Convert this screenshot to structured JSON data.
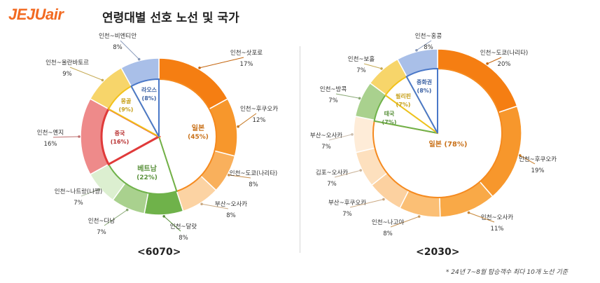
{
  "header": {
    "logo": "JEJUair",
    "title": "연령대별 선호 노선 및 국가"
  },
  "footnote": "* 24년 7~8월 탑승객수 최다 10개 노선 기준",
  "chart_data": [
    {
      "type": "pie",
      "period": "<6070>",
      "countries": [
        {
          "name": "일본",
          "value": 45,
          "label": "(45%)",
          "color": "#f58a1f"
        },
        {
          "name": "베트남",
          "value": 22,
          "label": "(22%)",
          "color": "#6fb24a"
        },
        {
          "name": "중국",
          "value": 16,
          "label": "(16%)",
          "color": "#e03a3a"
        },
        {
          "name": "몽골",
          "value": 9,
          "label": "(9%)",
          "color": "#f2c21b"
        },
        {
          "name": "라오스",
          "value": 8,
          "label": "(8%)",
          "color": "#4a78c8"
        }
      ],
      "routes": [
        {
          "name": "인천~삿포로",
          "value": 17,
          "label": "17%",
          "color": "#f57e12"
        },
        {
          "name": "인천~후쿠오카",
          "value": 12,
          "label": "12%",
          "color": "#f7972c"
        },
        {
          "name": "인천~도쿄(나리타)",
          "value": 8,
          "label": "8%",
          "color": "#f9b05c"
        },
        {
          "name": "부산~오사카",
          "value": 8,
          "label": "8%",
          "color": "#fcd3a3"
        },
        {
          "name": "인천~달랏",
          "value": 8,
          "label": "8%",
          "color": "#6fb24a"
        },
        {
          "name": "인천~다낭",
          "value": 7,
          "label": "7%",
          "color": "#a9d18e"
        },
        {
          "name": "인천~나트랑(냐짱)",
          "value": 7,
          "label": "7%",
          "color": "#dcefd0"
        },
        {
          "name": "인천~옌지",
          "value": 16,
          "label": "16%",
          "color": "#ee8a8a"
        },
        {
          "name": "인천~울란바토르",
          "value": 9,
          "label": "9%",
          "color": "#f7d56a"
        },
        {
          "name": "인천~비엔티안",
          "value": 8,
          "label": "8%",
          "color": "#a9bfe8"
        }
      ]
    },
    {
      "type": "pie",
      "period": "<2030>",
      "countries": [
        {
          "name": "일본",
          "value": 78,
          "label": "(78%)",
          "color": "#f58a1f"
        },
        {
          "name": "태국",
          "value": 7,
          "label": "(7%)",
          "color": "#6fb24a"
        },
        {
          "name": "필리핀",
          "value": 7,
          "label": "(7%)",
          "color": "#f2c21b"
        },
        {
          "name": "중화권",
          "value": 8,
          "label": "(8%)",
          "color": "#4a78c8"
        }
      ],
      "routes": [
        {
          "name": "인천~도쿄(나리타)",
          "value": 20,
          "label": "20%",
          "color": "#f57e12"
        },
        {
          "name": "인천~후쿠오카",
          "value": 19,
          "label": "19%",
          "color": "#f7972c"
        },
        {
          "name": "인천~오사카",
          "value": 11,
          "label": "11%",
          "color": "#f9a947"
        },
        {
          "name": "인천~나고야",
          "value": 8,
          "label": "8%",
          "color": "#fbbf75"
        },
        {
          "name": "부산~후쿠오카",
          "value": 7,
          "label": "7%",
          "color": "#fcd1a0"
        },
        {
          "name": "김포~오사카",
          "value": 7,
          "label": "7%",
          "color": "#fde0be"
        },
        {
          "name": "부산~오사카",
          "value": 7,
          "label": "7%",
          "color": "#feecd8"
        },
        {
          "name": "인천~방콕",
          "value": 7,
          "label": "7%",
          "color": "#a9d18e"
        },
        {
          "name": "인천~보홀",
          "value": 7,
          "label": "7%",
          "color": "#f7d56a"
        },
        {
          "name": "인천~홍콩",
          "value": 8,
          "label": "8%",
          "color": "#a9bfe8"
        }
      ]
    }
  ]
}
